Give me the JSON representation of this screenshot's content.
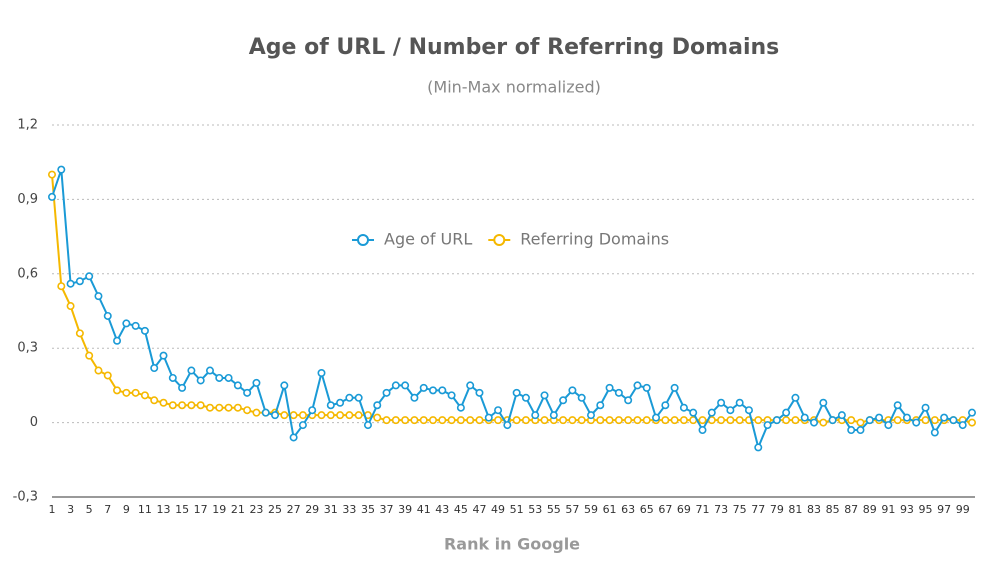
{
  "chart_data": {
    "type": "line",
    "title": "Age of URL / Number of Referring Domains",
    "subtitle": "(Min-Max normalized)",
    "x_label": "Rank in Google",
    "categories": [
      "1",
      null,
      "3",
      null,
      "5",
      null,
      "7",
      null,
      "9",
      null,
      "11",
      null,
      "13",
      null,
      "15",
      null,
      "17",
      null,
      "19",
      null,
      "21",
      null,
      "23",
      null,
      "25",
      null,
      "27",
      null,
      "29",
      null,
      "31",
      null,
      "33",
      null,
      "35",
      null,
      "37",
      null,
      "39",
      null,
      "41",
      null,
      "43",
      null,
      "45",
      null,
      "47",
      null,
      "49",
      null,
      "51",
      null,
      "53",
      null,
      "55",
      null,
      "57",
      null,
      "59",
      null,
      "61",
      null,
      "63",
      null,
      "65",
      null,
      "67",
      null,
      "69",
      null,
      "71",
      null,
      "73",
      null,
      "75",
      null,
      "77",
      null,
      "79",
      null,
      "81",
      null,
      "83",
      null,
      "85",
      null,
      "87",
      null,
      "89",
      null,
      "91",
      null,
      "93",
      null,
      "95",
      null,
      "97",
      null,
      "99",
      null
    ],
    "series": [
      {
        "name": "Age of URL",
        "color": "#1a9ad6",
        "values": [
          0.91,
          1.02,
          0.56,
          0.57,
          0.59,
          0.51,
          0.43,
          0.33,
          0.4,
          0.39,
          0.37,
          0.22,
          0.27,
          0.18,
          0.14,
          0.21,
          0.17,
          0.21,
          0.18,
          0.18,
          0.15,
          0.12,
          0.16,
          0.04,
          0.03,
          0.15,
          -0.06,
          -0.01,
          0.05,
          0.2,
          0.07,
          0.08,
          0.1,
          0.1,
          -0.01,
          0.07,
          0.12,
          0.15,
          0.15,
          0.1,
          0.14,
          0.13,
          0.13,
          0.11,
          0.06,
          0.15,
          0.12,
          0.02,
          0.05,
          -0.01,
          0.12,
          0.1,
          0.03,
          0.11,
          0.03,
          0.09,
          0.13,
          0.1,
          0.03,
          0.07,
          0.14,
          0.12,
          0.09,
          0.15,
          0.14,
          0.02,
          0.07,
          0.14,
          0.06,
          0.04,
          -0.03,
          0.04,
          0.08,
          0.05,
          0.08,
          0.05,
          -0.1,
          -0.01,
          0.01,
          0.04,
          0.1,
          0.02,
          0.0,
          0.08,
          0.01,
          0.03,
          -0.03,
          -0.03,
          0.01,
          0.02,
          -0.01,
          0.07,
          0.02,
          0.0,
          0.06,
          -0.04,
          0.02,
          0.01,
          -0.01,
          0.04
        ]
      },
      {
        "name": "Referring Domains",
        "color": "#f5b800",
        "values": [
          1.0,
          0.55,
          0.47,
          0.36,
          0.27,
          0.21,
          0.19,
          0.13,
          0.12,
          0.12,
          0.11,
          0.09,
          0.08,
          0.07,
          0.07,
          0.07,
          0.07,
          0.06,
          0.06,
          0.06,
          0.06,
          0.05,
          0.04,
          0.04,
          0.04,
          0.03,
          0.03,
          0.03,
          0.03,
          0.03,
          0.03,
          0.03,
          0.03,
          0.03,
          0.03,
          0.02,
          0.01,
          0.01,
          0.01,
          0.01,
          0.01,
          0.01,
          0.01,
          0.01,
          0.01,
          0.01,
          0.01,
          0.01,
          0.01,
          0.01,
          0.01,
          0.01,
          0.01,
          0.01,
          0.01,
          0.01,
          0.01,
          0.01,
          0.01,
          0.01,
          0.01,
          0.01,
          0.01,
          0.01,
          0.01,
          0.01,
          0.01,
          0.01,
          0.01,
          0.01,
          0.01,
          0.01,
          0.01,
          0.01,
          0.01,
          0.01,
          0.01,
          0.01,
          0.01,
          0.01,
          0.01,
          0.01,
          0.01,
          0.0,
          0.01,
          0.01,
          0.01,
          0.0,
          0.01,
          0.01,
          0.01,
          0.01,
          0.01,
          0.01,
          0.01,
          0.01,
          0.01,
          0.01,
          0.01,
          0.0
        ]
      }
    ],
    "ylim": [
      -0.3,
      1.2
    ],
    "yticks": [
      {
        "value": -0.3,
        "label": "-0,3"
      },
      0,
      {
        "value": 0.3,
        "label": "0,3"
      },
      {
        "value": 0.6,
        "label": "0,6"
      },
      {
        "value": 0.9,
        "label": "0,9"
      },
      {
        "value": 1.2,
        "label": "1,2"
      }
    ],
    "grid": true
  }
}
